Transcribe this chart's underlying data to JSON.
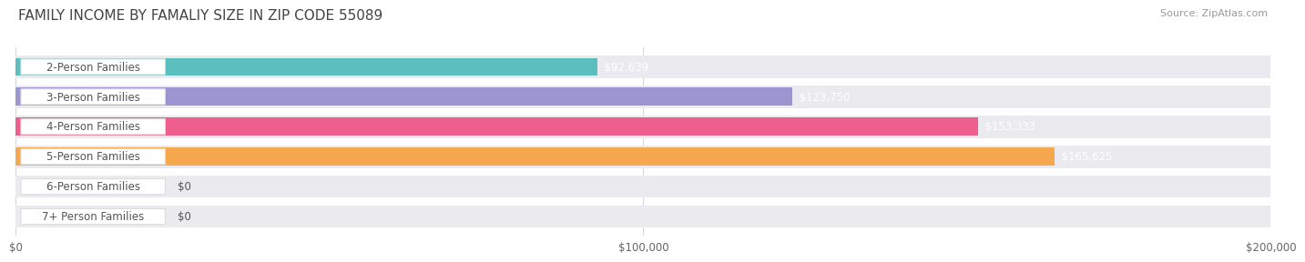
{
  "title": "FAMILY INCOME BY FAMALIY SIZE IN ZIP CODE 55089",
  "source": "Source: ZipAtlas.com",
  "categories": [
    "2-Person Families",
    "3-Person Families",
    "4-Person Families",
    "5-Person Families",
    "6-Person Families",
    "7+ Person Families"
  ],
  "values": [
    92639,
    123750,
    153333,
    165625,
    0,
    0
  ],
  "value_labels": [
    "$92,639",
    "$123,750",
    "$153,333",
    "$165,625",
    "$0",
    "$0"
  ],
  "bar_colors": [
    "#5BBFBF",
    "#9B96D0",
    "#EF5F8E",
    "#F5A84E",
    "#F2A8B0",
    "#A8C8E8"
  ],
  "bar_track_color": "#EAEAEF",
  "xmax": 200000,
  "xtick_labels": [
    "$0",
    "$100,000",
    "$200,000"
  ],
  "label_box_color": "#FFFFFF",
  "label_text_color": "#555555",
  "value_text_color_inside": "#FFFFFF",
  "value_text_color_outside": "#555555",
  "background_color": "#FFFFFF",
  "title_fontsize": 11,
  "source_fontsize": 8,
  "label_fontsize": 8.5,
  "value_fontsize": 8.5
}
